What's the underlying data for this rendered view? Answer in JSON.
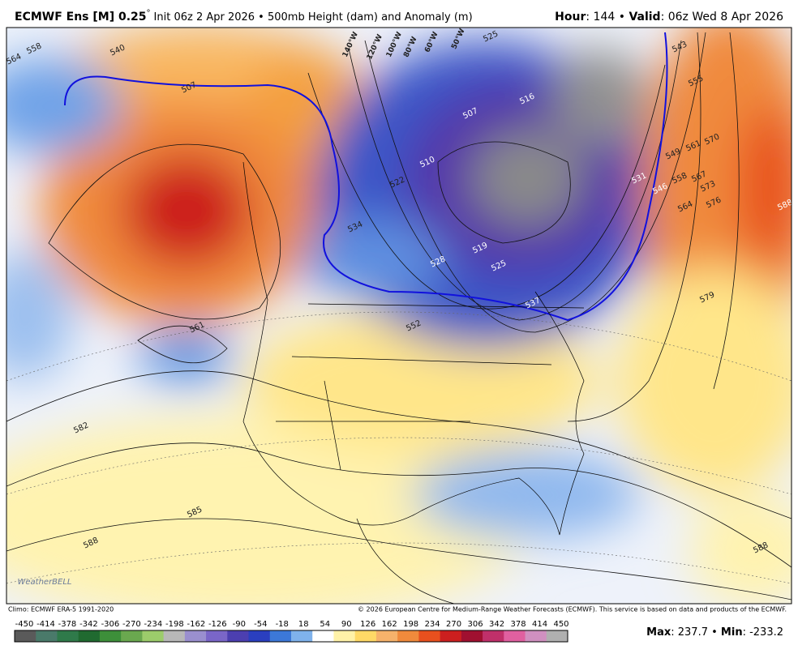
{
  "header": {
    "model": "ECMWF Ens [M] 0.25",
    "degree": "°",
    "description": "Init 06z 2 Apr 2026 • 500mb Height (dam) and Anomaly (m)",
    "hour_key": "Hour",
    "hour_value": ": 144 • ",
    "valid_key": "Valid",
    "valid_value": ": 06z Wed 8 Apr 2026"
  },
  "map": {
    "contour_labels": [
      "564",
      "558",
      "540",
      "507",
      "561",
      "582",
      "585",
      "588",
      "552",
      "534",
      "528",
      "522",
      "519",
      "525",
      "537",
      "510",
      "507",
      "516",
      "531",
      "546",
      "549",
      "558",
      "561",
      "564",
      "567",
      "570",
      "573",
      "576",
      "579",
      "555",
      "543",
      "525",
      "588",
      "588"
    ],
    "longitude_labels": [
      "140°W",
      "120°W",
      "100°W",
      "80°W",
      "60°W",
      "50°W"
    ],
    "watermark": "WeatherBELL"
  },
  "footer": {
    "climo": "Climo: ECMWF ERA-5 1991-2020",
    "copyright": "© 2026 European Centre for Medium-Range Weather Forecasts (ECMWF). This service is based on data and products of the ECMWF.",
    "max_key": "Max",
    "max_value": ": 237.7 • ",
    "min_key": "Min",
    "min_value": ": -233.2"
  },
  "colorbar": {
    "labels": [
      "-450",
      "-414",
      "-378",
      "-342",
      "-306",
      "-270",
      "-234",
      "-198",
      "-162",
      "-126",
      "-90",
      "-54",
      "-18",
      "18",
      "54",
      "90",
      "126",
      "162",
      "198",
      "234",
      "270",
      "306",
      "342",
      "378",
      "414",
      "450"
    ],
    "colors": [
      "#5a5a5a",
      "#4a7a6a",
      "#2f7a4a",
      "#206a30",
      "#3d8f3a",
      "#6aa84f",
      "#9ccc6b",
      "#b8b8b8",
      "#9a8fcf",
      "#7a66c8",
      "#4c3fb0",
      "#2a3fbf",
      "#3c78d8",
      "#7fb2ec",
      "#ffffff",
      "#fff2a8",
      "#ffd966",
      "#f6b26b",
      "#f08a3c",
      "#e8501e",
      "#cc1f1f",
      "#a01030",
      "#c0306a",
      "#e060a0",
      "#d090c0",
      "#b0b0b0"
    ]
  }
}
